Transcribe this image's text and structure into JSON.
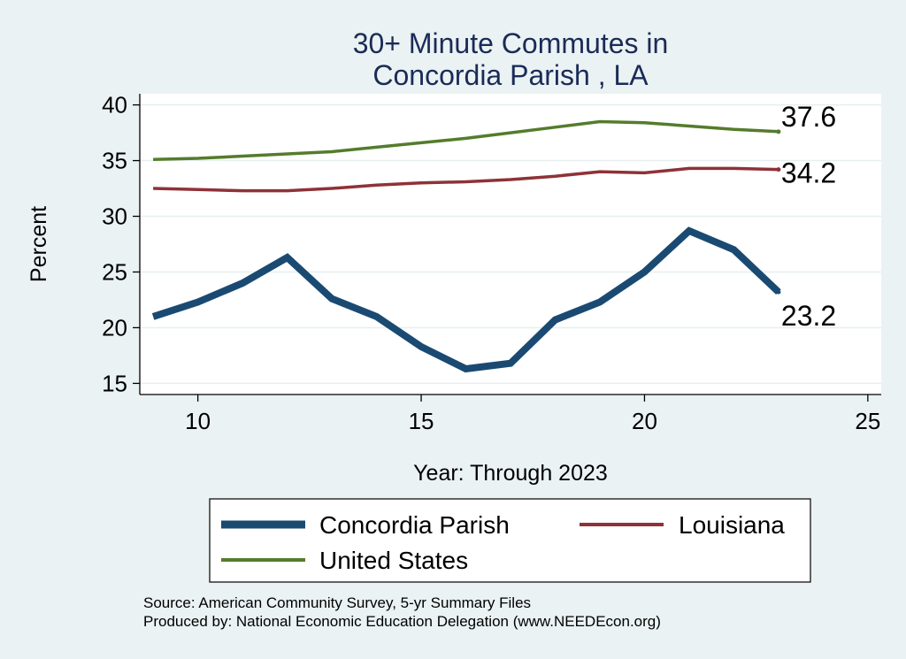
{
  "chart_data": {
    "type": "line",
    "title_lines": [
      "30+ Minute Commutes in",
      "Concordia Parish , LA"
    ],
    "xlabel": "Year: Through 2023",
    "ylabel": "Percent",
    "xlim": [
      8.7,
      25.3
    ],
    "ylim": [
      14.0,
      41.0
    ],
    "xticks": [
      10,
      15,
      20,
      25
    ],
    "yticks": [
      15,
      20,
      25,
      30,
      35,
      40
    ],
    "grid": true,
    "legend_position": "bottom",
    "x": [
      9,
      10,
      11,
      12,
      13,
      14,
      15,
      16,
      17,
      18,
      19,
      20,
      21,
      22,
      23
    ],
    "series": [
      {
        "name": "Concordia Parish",
        "color": "#1a4a72",
        "values": [
          21.0,
          22.3,
          24.0,
          26.3,
          22.6,
          21.0,
          18.3,
          16.3,
          16.8,
          20.7,
          22.3,
          25.0,
          28.7,
          27.0,
          23.2
        ],
        "end_label": "23.2",
        "weight": "thick"
      },
      {
        "name": "Louisiana",
        "color": "#8e3237",
        "values": [
          32.5,
          32.4,
          32.3,
          32.3,
          32.5,
          32.8,
          33.0,
          33.1,
          33.3,
          33.6,
          34.0,
          33.9,
          34.3,
          34.3,
          34.2
        ],
        "end_label": "34.2",
        "weight": "medium"
      },
      {
        "name": "United States",
        "color": "#547c2c",
        "values": [
          35.1,
          35.2,
          35.4,
          35.6,
          35.8,
          36.2,
          36.6,
          37.0,
          37.5,
          38.0,
          38.5,
          38.4,
          38.1,
          37.8,
          37.6
        ],
        "end_label": "37.6",
        "weight": "medium"
      }
    ],
    "legend": [
      "Concordia Parish",
      "Louisiana",
      "United States"
    ]
  },
  "footer": {
    "source": "Source: American Community Survey, 5-yr Summary Files",
    "producer": "Produced by: National Economic Education Delegation (www.NEEDEcon.org)"
  },
  "colors": {
    "background": "#eaf2f3",
    "plot_background": "#ffffff",
    "grid": "#e6efef",
    "title": "#1b2b57"
  }
}
